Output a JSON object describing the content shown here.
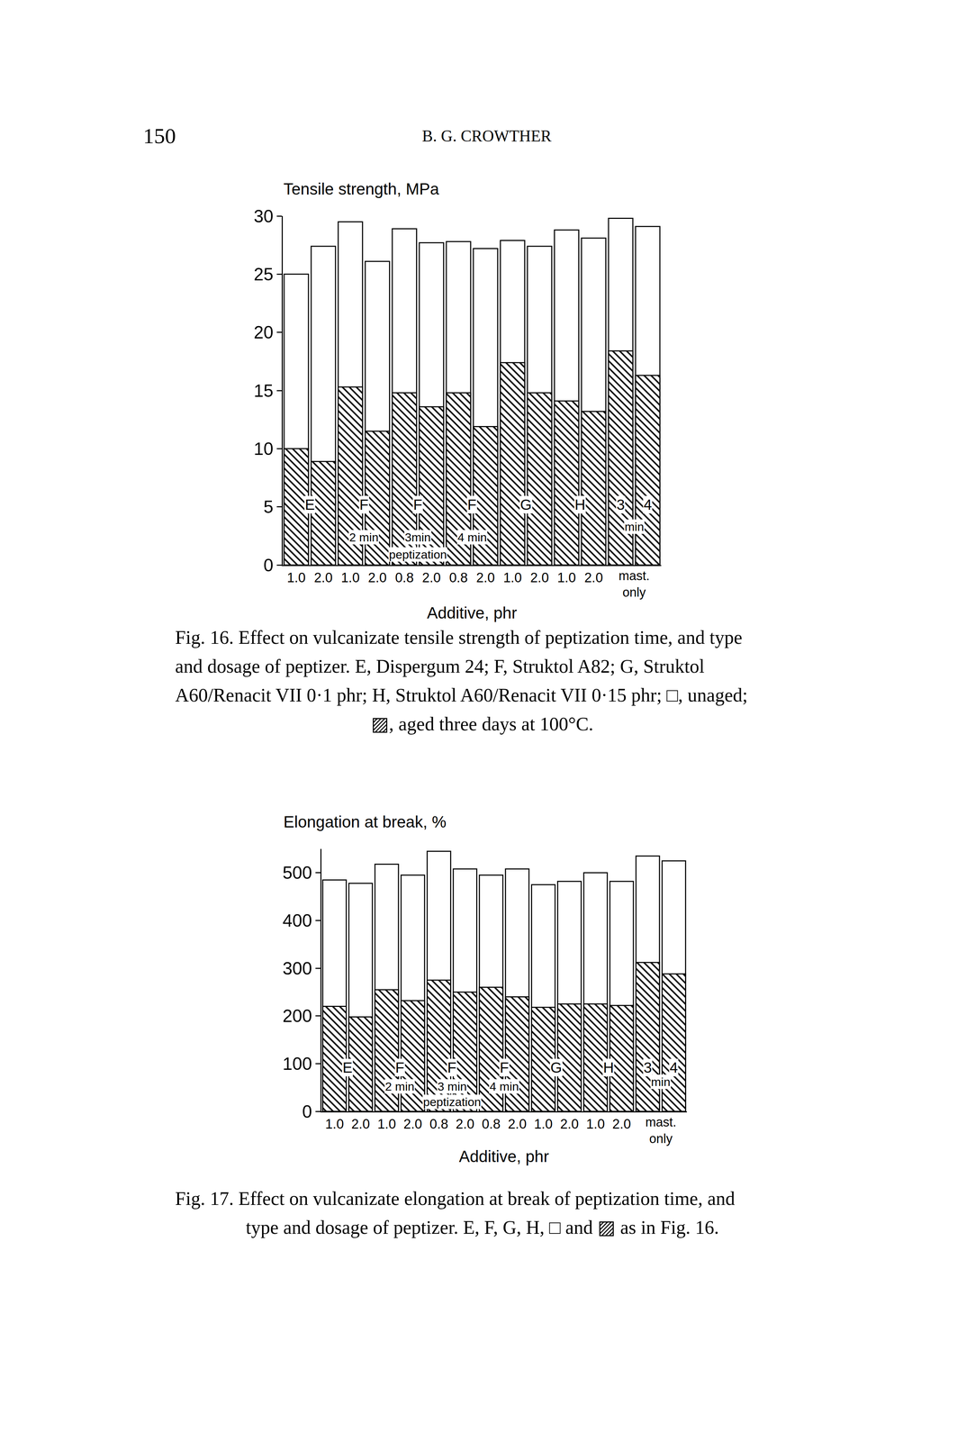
{
  "header": {
    "page_number": "150",
    "running_title": "B. G. CROWTHER"
  },
  "chart_data": [
    {
      "type": "bar",
      "y_label": "Tensile strength, MPa",
      "x_label": "Additive, phr",
      "categories": [
        "1.0",
        "2.0",
        "1.0",
        "2.0",
        "0.8",
        "2.0",
        "0.8",
        "2.0",
        "1.0",
        "2.0",
        "1.0",
        "2.0",
        null,
        null
      ],
      "series": [
        {
          "color": "#ffffff",
          "marker": "solid",
          "values": [
            25.0,
            27.4,
            29.5,
            26.1,
            28.9,
            27.7,
            27.8,
            27.2,
            27.9,
            27.4,
            28.8,
            28.1,
            29.8,
            29.1
          ]
        },
        {
          "color": "#000000",
          "marker": "hatched",
          "values": [
            10.0,
            8.9,
            15.3,
            11.5,
            14.8,
            13.6,
            14.8,
            11.9,
            17.4,
            14.8,
            14.1,
            13.2,
            18.4,
            16.3
          ]
        }
      ],
      "stacked": false,
      "grid": false,
      "ylim": [
        0,
        30
      ],
      "yticks": [
        0,
        5,
        10,
        15,
        20,
        25,
        30
      ],
      "annotations": [
        {
          "text": "E",
          "x": 0.5,
          "y": 5.2
        },
        {
          "text": "F",
          "x": 2.5,
          "y": 5.2
        },
        {
          "text": "2 min",
          "x": 2.5,
          "y": 2.4
        },
        {
          "text": "F",
          "x": 4.5,
          "y": 5.2
        },
        {
          "text": "3min",
          "x": 4.5,
          "y": 2.4
        },
        {
          "text": "F",
          "x": 6.5,
          "y": 5.2
        },
        {
          "text": "4 min",
          "x": 6.5,
          "y": 2.4
        },
        {
          "text": "peptization",
          "x": 4.5,
          "y": 0.9
        },
        {
          "text": "G",
          "x": 8.5,
          "y": 5.2
        },
        {
          "text": "H",
          "x": 10.5,
          "y": 5.2
        },
        {
          "text": "3",
          "x": 12,
          "y": 5.2
        },
        {
          "text": "4",
          "x": 13,
          "y": 5.2
        },
        {
          "text": "min",
          "x": 12.5,
          "y": 3.3
        },
        {
          "text": "mast. only",
          "x": 12.5
        }
      ],
      "caption": [
        "Fig. 16. Effect on vulcanizate tensile strength of peptization time, and type",
        "and dosage of peptizer. E, Dispergum 24; F, Struktol A82; G, Struktol",
        "A60/Renacit VII 0·1 phr; H, Struktol A60/Renacit VII 0·15 phr; □, unaged;",
        "▨, aged three days at 100°C."
      ]
    },
    {
      "type": "bar",
      "y_label": "Elongation at break, %",
      "x_label": "Additive, phr",
      "categories": [
        "1.0",
        "2.0",
        "1.0",
        "2.0",
        "0.8",
        "2.0",
        "0.8",
        "2.0",
        "1.0",
        "2.0",
        "1.0",
        "2.0",
        null,
        null
      ],
      "series": [
        {
          "color": "#ffffff",
          "marker": "solid",
          "values": [
            485,
            478,
            518,
            495,
            545,
            508,
            495,
            508,
            475,
            482,
            500,
            482,
            535,
            525
          ]
        },
        {
          "color": "#000000",
          "marker": "hatched",
          "values": [
            220,
            198,
            255,
            232,
            275,
            250,
            260,
            240,
            218,
            225,
            225,
            222,
            312,
            288
          ]
        }
      ],
      "stacked": false,
      "grid": false,
      "ylim": [
        0,
        550
      ],
      "yticks": [
        0,
        100,
        200,
        300,
        400,
        500
      ],
      "annotations": [
        {
          "text": "E",
          "x": 0.5,
          "y": 92
        },
        {
          "text": "F",
          "x": 2.5,
          "y": 92
        },
        {
          "text": "2 min",
          "x": 2.5,
          "y": 52
        },
        {
          "text": "F",
          "x": 4.5,
          "y": 92
        },
        {
          "text": "3 min",
          "x": 4.5,
          "y": 52
        },
        {
          "text": "F",
          "x": 6.5,
          "y": 92
        },
        {
          "text": "4 min",
          "x": 6.5,
          "y": 52
        },
        {
          "text": "peptization",
          "x": 4.5,
          "y": 20
        },
        {
          "text": "G",
          "x": 8.5,
          "y": 92
        },
        {
          "text": "H",
          "x": 10.5,
          "y": 92
        },
        {
          "text": "3",
          "x": 12,
          "y": 92
        },
        {
          "text": "4",
          "x": 13,
          "y": 92
        },
        {
          "text": "min",
          "x": 12.5,
          "y": 62
        },
        {
          "text": "mast. only",
          "x": 12.5
        }
      ],
      "caption": [
        "Fig. 17. Effect on vulcanizate elongation at break of peptization time, and",
        "type and dosage of peptizer. E, F, G, H, □ and ▨ as in Fig. 16."
      ]
    }
  ]
}
